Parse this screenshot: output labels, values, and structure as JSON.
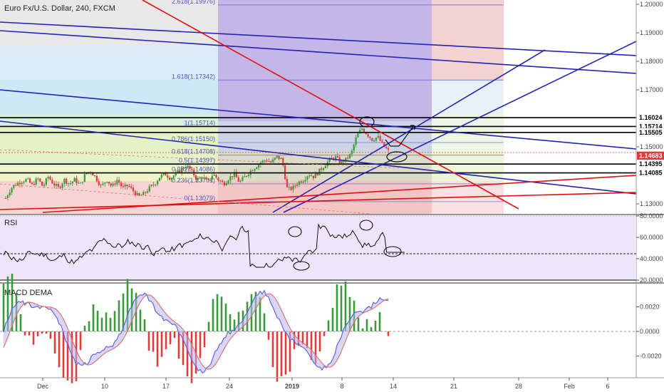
{
  "header": {
    "title": "Euro Fx/U.S. Dollar, 240, FXCM"
  },
  "colors": {
    "bull": "#3a9a3a",
    "bear": "#e03b3b",
    "blue_line": "#2323b8",
    "red_line": "#e01010",
    "rsi_bg": "#efe5fb",
    "macd": "#5a5ae0",
    "signal": "#e06a6a"
  },
  "chart_data": [
    {
      "type": "candlestick",
      "title": "Euro Fx/U.S. Dollar, 240, FXCM",
      "ylim": [
        1.1265,
        1.2015
      ],
      "y_ticks": [
        "1.20000",
        "1.19000",
        "1.18000",
        "1.17000",
        "1.15000",
        "1.13000"
      ],
      "x_ticks": [
        "Dec",
        "10",
        "17",
        "24",
        "2019",
        "8",
        "14",
        "21",
        "28",
        "Feb",
        "6"
      ],
      "price_tags": [
        {
          "label": "1.16024",
          "value": 1.16024,
          "style": "black"
        },
        {
          "label": "1.15714",
          "value": 1.15714,
          "style": "black"
        },
        {
          "label": "1.15505",
          "value": 1.15505,
          "style": "black"
        },
        {
          "label": "1.14683",
          "value": 1.14683,
          "style": "red"
        },
        {
          "label": "1.14395",
          "value": 1.14395,
          "style": "black"
        },
        {
          "label": "1.14085",
          "value": 1.14085,
          "style": "black"
        }
      ],
      "fib_levels": [
        {
          "label": "2.618(1.19976)",
          "value": 1.19976
        },
        {
          "label": "1.618(1.17342)",
          "value": 1.17342
        },
        {
          "label": "1(1.15714)",
          "value": 1.15714
        },
        {
          "label": "0.786(1.15150)",
          "value": 1.1515
        },
        {
          "label": "0.618(1.14708)",
          "value": 1.14708
        },
        {
          "label": "0.5(1.14397)",
          "value": 1.14397
        },
        {
          "label": "0.382(1.14086)",
          "value": 1.14086
        },
        {
          "label": "0.236(1.13701)",
          "value": 1.13701
        },
        {
          "label": "0(1.13079)",
          "value": 1.13079
        }
      ],
      "close_path": [
        [
          0,
          1.132
        ],
        [
          0.01,
          1.1355
        ],
        [
          0.02,
          1.137
        ],
        [
          0.03,
          1.138
        ],
        [
          0.04,
          1.1385
        ],
        [
          0.05,
          1.1365
        ],
        [
          0.06,
          1.139
        ],
        [
          0.07,
          1.136
        ],
        [
          0.08,
          1.1395
        ],
        [
          0.09,
          1.137
        ],
        [
          0.1,
          1.1355
        ],
        [
          0.11,
          1.1385
        ],
        [
          0.12,
          1.137
        ],
        [
          0.13,
          1.1385
        ],
        [
          0.14,
          1.1365
        ],
        [
          0.15,
          1.1405
        ],
        [
          0.16,
          1.1415
        ],
        [
          0.17,
          1.139
        ],
        [
          0.18,
          1.136
        ],
        [
          0.19,
          1.1385
        ],
        [
          0.2,
          1.136
        ],
        [
          0.21,
          1.1385
        ],
        [
          0.22,
          1.1355
        ],
        [
          0.23,
          1.1365
        ],
        [
          0.24,
          1.1345
        ],
        [
          0.25,
          1.1325
        ],
        [
          0.26,
          1.1335
        ],
        [
          0.27,
          1.1355
        ],
        [
          0.28,
          1.137
        ],
        [
          0.29,
          1.1395
        ],
        [
          0.3,
          1.1405
        ],
        [
          0.31,
          1.139
        ],
        [
          0.32,
          1.1405
        ],
        [
          0.33,
          1.142
        ],
        [
          0.34,
          1.1435
        ],
        [
          0.35,
          1.1415
        ],
        [
          0.36,
          1.1385
        ],
        [
          0.37,
          1.1395
        ],
        [
          0.38,
          1.1375
        ],
        [
          0.39,
          1.1405
        ],
        [
          0.4,
          1.1385
        ],
        [
          0.41,
          1.137
        ],
        [
          0.42,
          1.139
        ],
        [
          0.43,
          1.1405
        ],
        [
          0.44,
          1.1375
        ],
        [
          0.45,
          1.1395
        ],
        [
          0.46,
          1.1415
        ],
        [
          0.47,
          1.143
        ],
        [
          0.48,
          1.1445
        ],
        [
          0.49,
          1.1455
        ],
        [
          0.5,
          1.1445
        ],
        [
          0.51,
          1.1465
        ],
        [
          0.52,
          1.1455
        ],
        [
          0.53,
          1.135
        ],
        [
          0.54,
          1.1355
        ],
        [
          0.55,
          1.1375
        ],
        [
          0.56,
          1.1385
        ],
        [
          0.57,
          1.1405
        ],
        [
          0.58,
          1.1395
        ],
        [
          0.59,
          1.1415
        ],
        [
          0.6,
          1.1435
        ],
        [
          0.61,
          1.1455
        ],
        [
          0.62,
          1.1465
        ],
        [
          0.63,
          1.1445
        ],
        [
          0.64,
          1.1455
        ],
        [
          0.65,
          1.1475
        ],
        [
          0.66,
          1.1535
        ],
        [
          0.67,
          1.1565
        ],
        [
          0.68,
          1.1545
        ],
        [
          0.69,
          1.1525
        ],
        [
          0.7,
          1.1535
        ],
        [
          0.71,
          1.1505
        ],
        [
          0.72,
          1.1485
        ]
      ]
    },
    {
      "type": "line",
      "title": "RSI",
      "ylim": [
        20,
        80
      ],
      "y_ticks": [
        "80.0000",
        "60.0000",
        "40.0000",
        "20.0000"
      ],
      "reference_lines": [
        45
      ]
    },
    {
      "type": "bar",
      "title": "MACD DEMA",
      "ylim": [
        -0.0036,
        0.0036
      ],
      "y_ticks": [
        "0.0020",
        "0.0000",
        "-0.0020"
      ],
      "reference_lines": [
        0
      ]
    }
  ]
}
